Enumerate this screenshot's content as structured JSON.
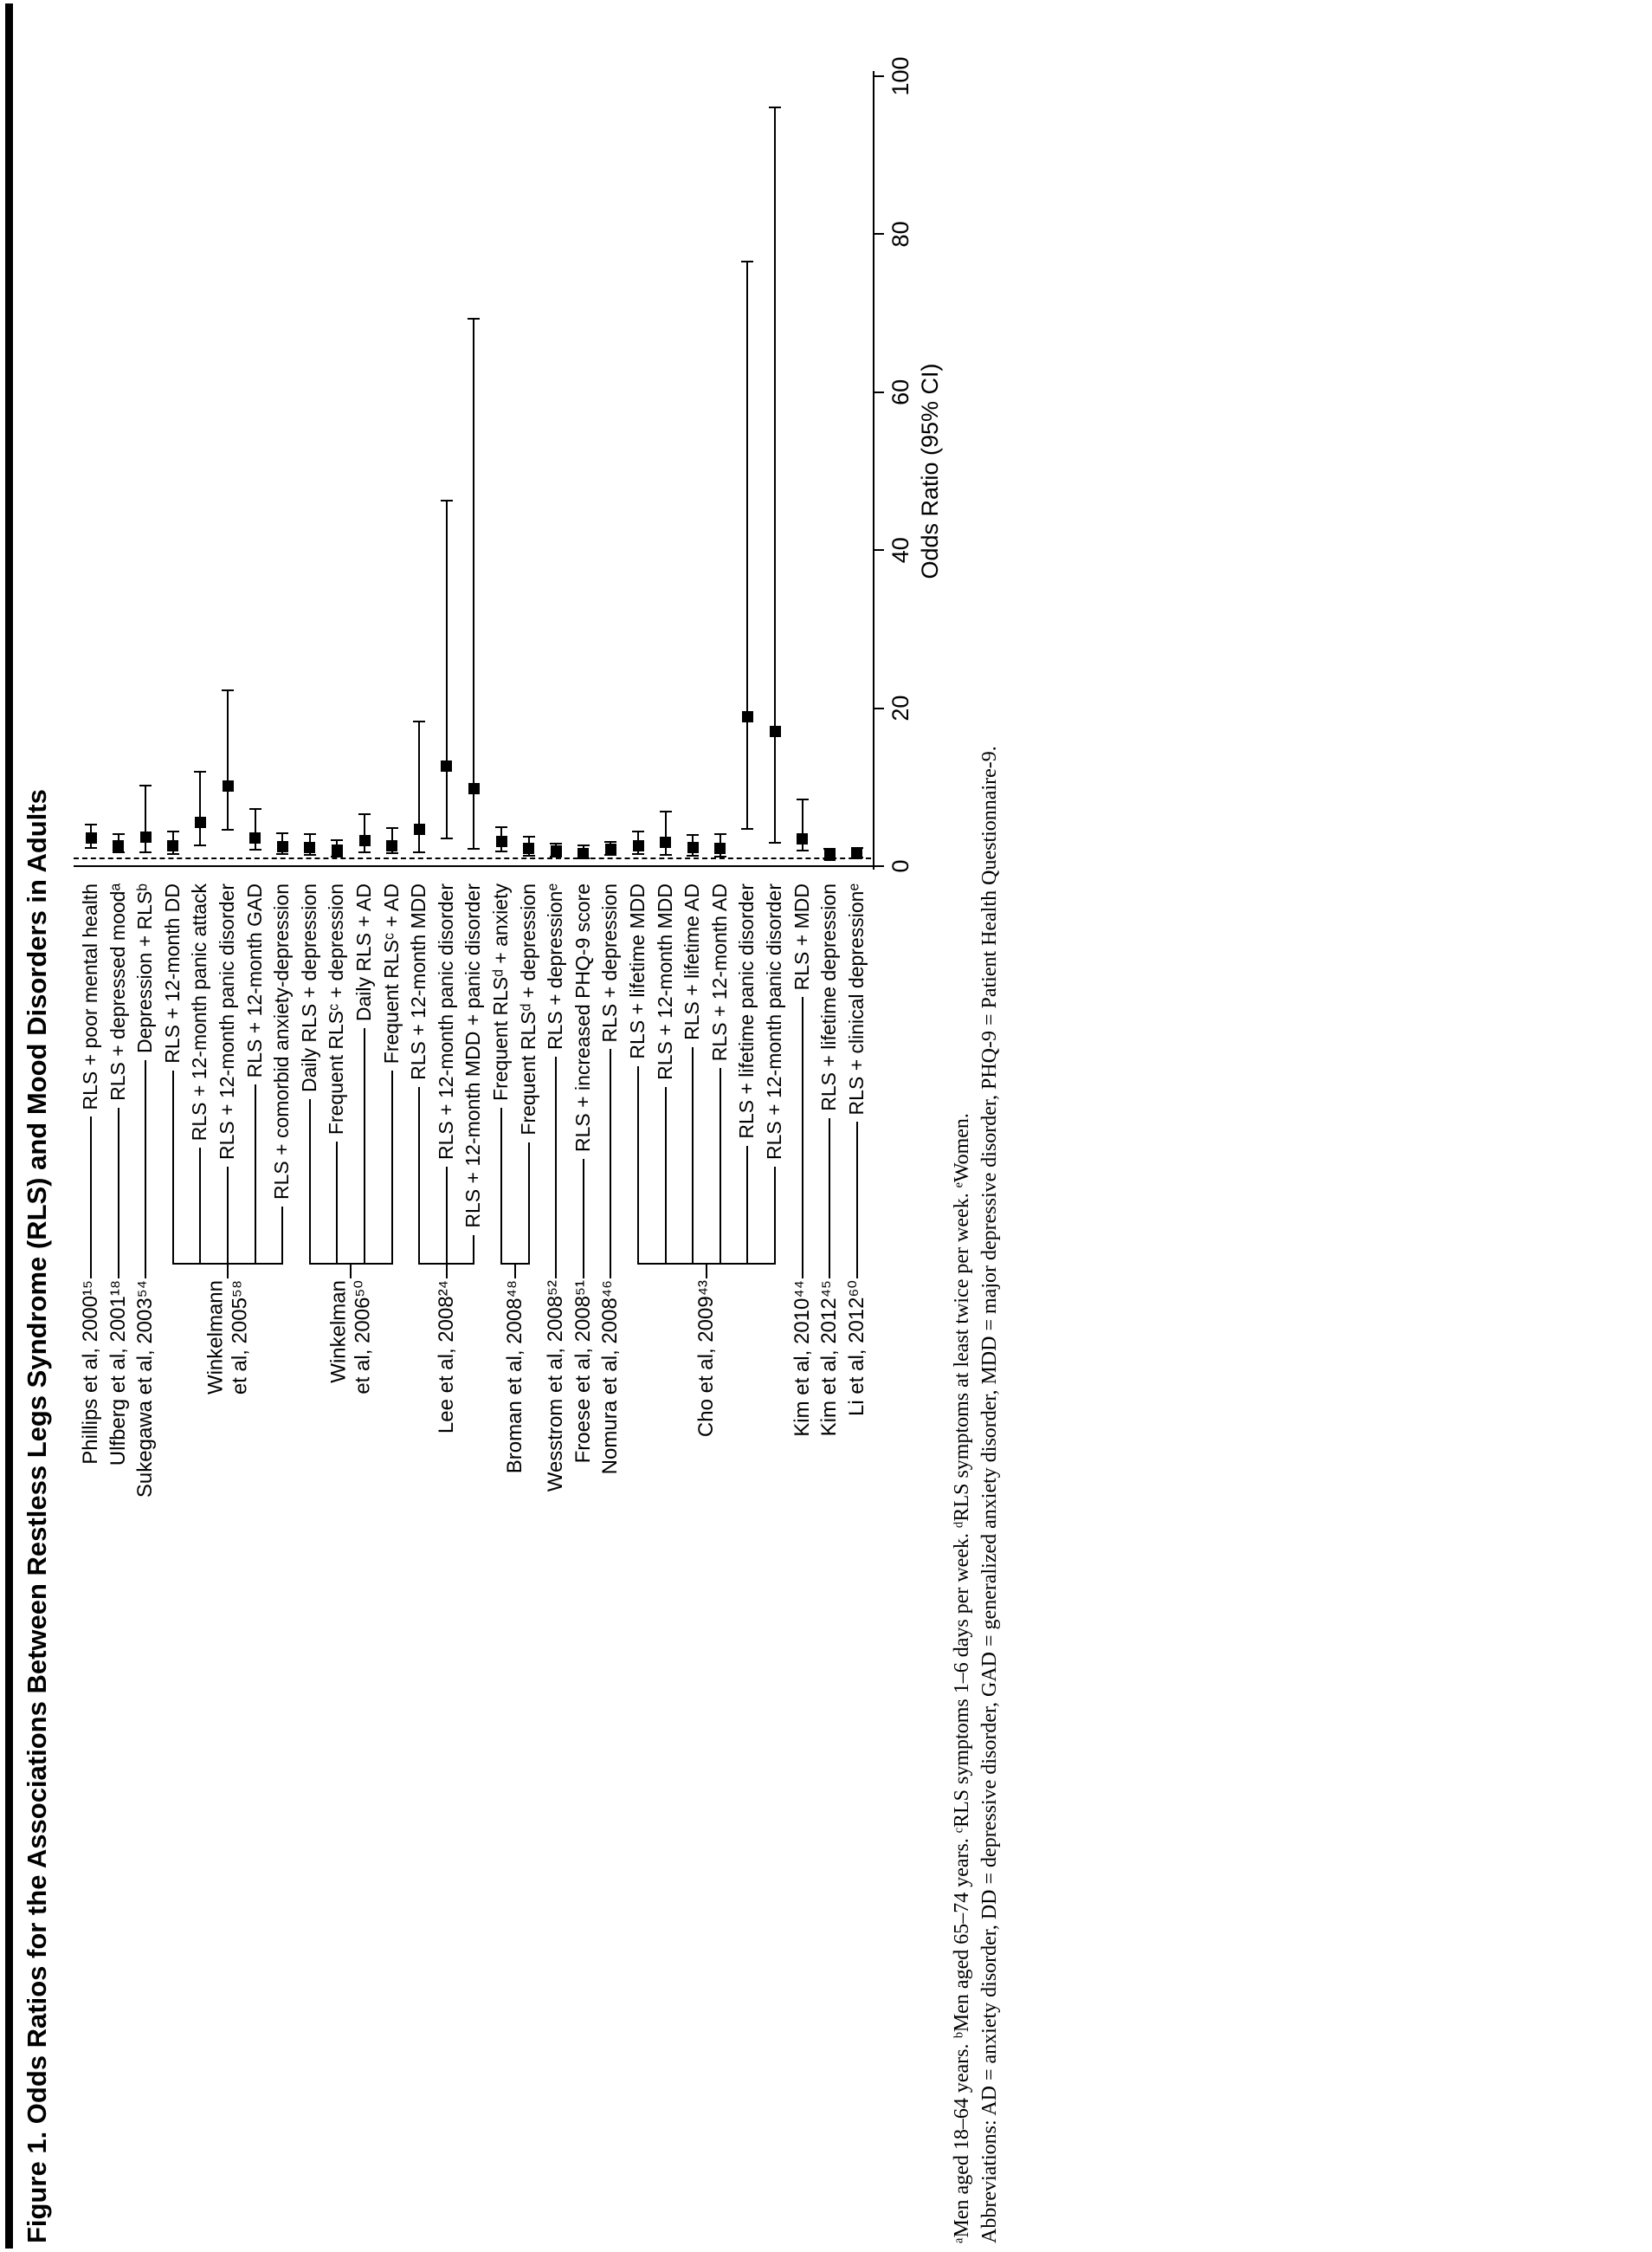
{
  "chart_data": {
    "type": "forest",
    "title": "Figure 1. Odds Ratios for the Associations Between Restless Legs Syndrome (RLS) and Mood Disorders in Adults",
    "axis": {
      "label": "Odds Ratio (95% CI)",
      "min": 0,
      "max": 100,
      "ticks": [
        0,
        20,
        40,
        60,
        80,
        100
      ],
      "reference_line": 1
    },
    "marker": "black-square-with-ci-whiskers",
    "groups": [
      {
        "citation_lines": [
          "Phillips et al, 2000¹⁵"
        ],
        "outcomes": [
          {
            "label": "RLS + poor mental health",
            "or": 3.6,
            "lo": 2.3,
            "hi": 5.3
          }
        ]
      },
      {
        "citation_lines": [
          "Ulfberg et al, 2001¹⁸"
        ],
        "outcomes": [
          {
            "label": "RLS + depressed moodᵃ",
            "or": 2.6,
            "lo": 1.8,
            "hi": 4.1
          }
        ]
      },
      {
        "citation_lines": [
          "Sukegawa et al, 2003⁵⁴"
        ],
        "outcomes": [
          {
            "label": "Depression + RLSᵇ",
            "or": 3.7,
            "lo": 1.8,
            "hi": 10.2
          }
        ]
      },
      {
        "citation_lines": [
          "Winkelmann",
          "et al, 2005⁵⁸"
        ],
        "outcomes": [
          {
            "label": "RLS + 12-month DD",
            "or": 2.6,
            "lo": 1.5,
            "hi": 4.4
          },
          {
            "label": "RLS + 12-month panic attack",
            "or": 5.5,
            "lo": 2.6,
            "hi": 12.0
          },
          {
            "label": "RLS + 12-month panic disorder",
            "or": 10.1,
            "lo": 4.6,
            "hi": 22.3
          },
          {
            "label": "RLS + 12-month GAD",
            "or": 3.6,
            "lo": 2.1,
            "hi": 7.2
          },
          {
            "label": "RLS + comorbid anxiety-depression",
            "or": 2.5,
            "lo": 1.5,
            "hi": 4.2
          }
        ]
      },
      {
        "citation_lines": [
          "Winkelman",
          "et al, 2006⁵⁰"
        ],
        "outcomes": [
          {
            "label": "Daily RLS + depression",
            "or": 2.4,
            "lo": 1.4,
            "hi": 4.1
          },
          {
            "label": "Frequent RLSᶜ + depression",
            "or": 2.0,
            "lo": 1.2,
            "hi": 3.3
          },
          {
            "label": "Daily RLS + AD",
            "or": 3.2,
            "lo": 1.8,
            "hi": 6.6
          },
          {
            "label": "Frequent RLSᶜ + AD",
            "or": 2.6,
            "lo": 1.6,
            "hi": 4.8
          }
        ]
      },
      {
        "citation_lines": [
          "Lee et al, 2008²⁴"
        ],
        "outcomes": [
          {
            "label": "RLS + 12-month MDD",
            "or": 4.7,
            "lo": 1.7,
            "hi": 18.3
          },
          {
            "label": "RLS + 12-month panic disorder",
            "or": 12.7,
            "lo": 3.5,
            "hi": 46.3
          },
          {
            "label": "RLS + 12-month MDD + panic disorder",
            "or": 9.8,
            "lo": 2.2,
            "hi": 69.3
          }
        ]
      },
      {
        "citation_lines": [
          "Broman et al, 2008⁴⁸"
        ],
        "outcomes": [
          {
            "label": "Frequent RLSᵈ + anxiety",
            "or": 3.1,
            "lo": 1.9,
            "hi": 4.9
          },
          {
            "label": "Frequent RLSᵈ + depression",
            "or": 2.3,
            "lo": 1.3,
            "hi": 3.7
          }
        ]
      },
      {
        "citation_lines": [
          "Wesstrom et al, 2008⁵²"
        ],
        "outcomes": [
          {
            "label": "RLS + depressionᵉ",
            "or": 1.9,
            "lo": 1.2,
            "hi": 2.9
          }
        ]
      },
      {
        "citation_lines": [
          "Froese et al, 2008⁵¹"
        ],
        "outcomes": [
          {
            "label": "RLS + increased PHQ-9 score",
            "or": 1.6,
            "lo": 1.0,
            "hi": 2.6
          }
        ]
      },
      {
        "citation_lines": [
          "Nomura et al, 2008⁴⁶"
        ],
        "outcomes": [
          {
            "label": "RLS + depression",
            "or": 2.1,
            "lo": 1.4,
            "hi": 3.1
          }
        ]
      },
      {
        "citation_lines": [
          "Cho et al, 2009⁴³"
        ],
        "outcomes": [
          {
            "label": "RLS + lifetime MDD",
            "or": 2.6,
            "lo": 1.5,
            "hi": 4.4
          },
          {
            "label": "RLS + 12-month MDD",
            "or": 3.0,
            "lo": 1.4,
            "hi": 6.9
          },
          {
            "label": "RLS + lifetime AD",
            "or": 2.4,
            "lo": 1.3,
            "hi": 3.9
          },
          {
            "label": "RLS + 12-month AD",
            "or": 2.3,
            "lo": 1.2,
            "hi": 4.1
          },
          {
            "label": "RLS + lifetime panic disorder",
            "or": 18.9,
            "lo": 4.7,
            "hi": 76.5
          },
          {
            "label": "RLS + 12-month panic disorder",
            "or": 17.0,
            "lo": 3.0,
            "hi": 96.1
          }
        ]
      },
      {
        "citation_lines": [
          "Kim et al, 2010⁴⁴"
        ],
        "outcomes": [
          {
            "label": "RLS + MDD",
            "or": 3.5,
            "lo": 2.0,
            "hi": 8.4
          }
        ]
      },
      {
        "citation_lines": [
          "Kim et al, 2012⁴⁵"
        ],
        "outcomes": [
          {
            "label": "RLS + lifetime depression",
            "or": 1.4,
            "lo": 0.9,
            "hi": 2.2
          }
        ]
      },
      {
        "citation_lines": [
          "Li et al, 2012⁶⁰"
        ],
        "outcomes": [
          {
            "label": "RLS + clinical depressionᵉ",
            "or": 1.6,
            "lo": 1.1,
            "hi": 2.3
          }
        ]
      }
    ],
    "footnotes": [
      "ᵃMen aged 18–64 years.  ᵇMen aged 65–74 years.  ᶜRLS symptoms 1–6 days per week.  ᵈRLS symptoms at least twice per week.  ᵉWomen.",
      "Abbreviations: AD = anxiety disorder, DD = depressive disorder, GAD = generalized anxiety disorder, MDD = major depressive disorder, PHQ-9 = Patient Health Questionnaire-9."
    ]
  }
}
